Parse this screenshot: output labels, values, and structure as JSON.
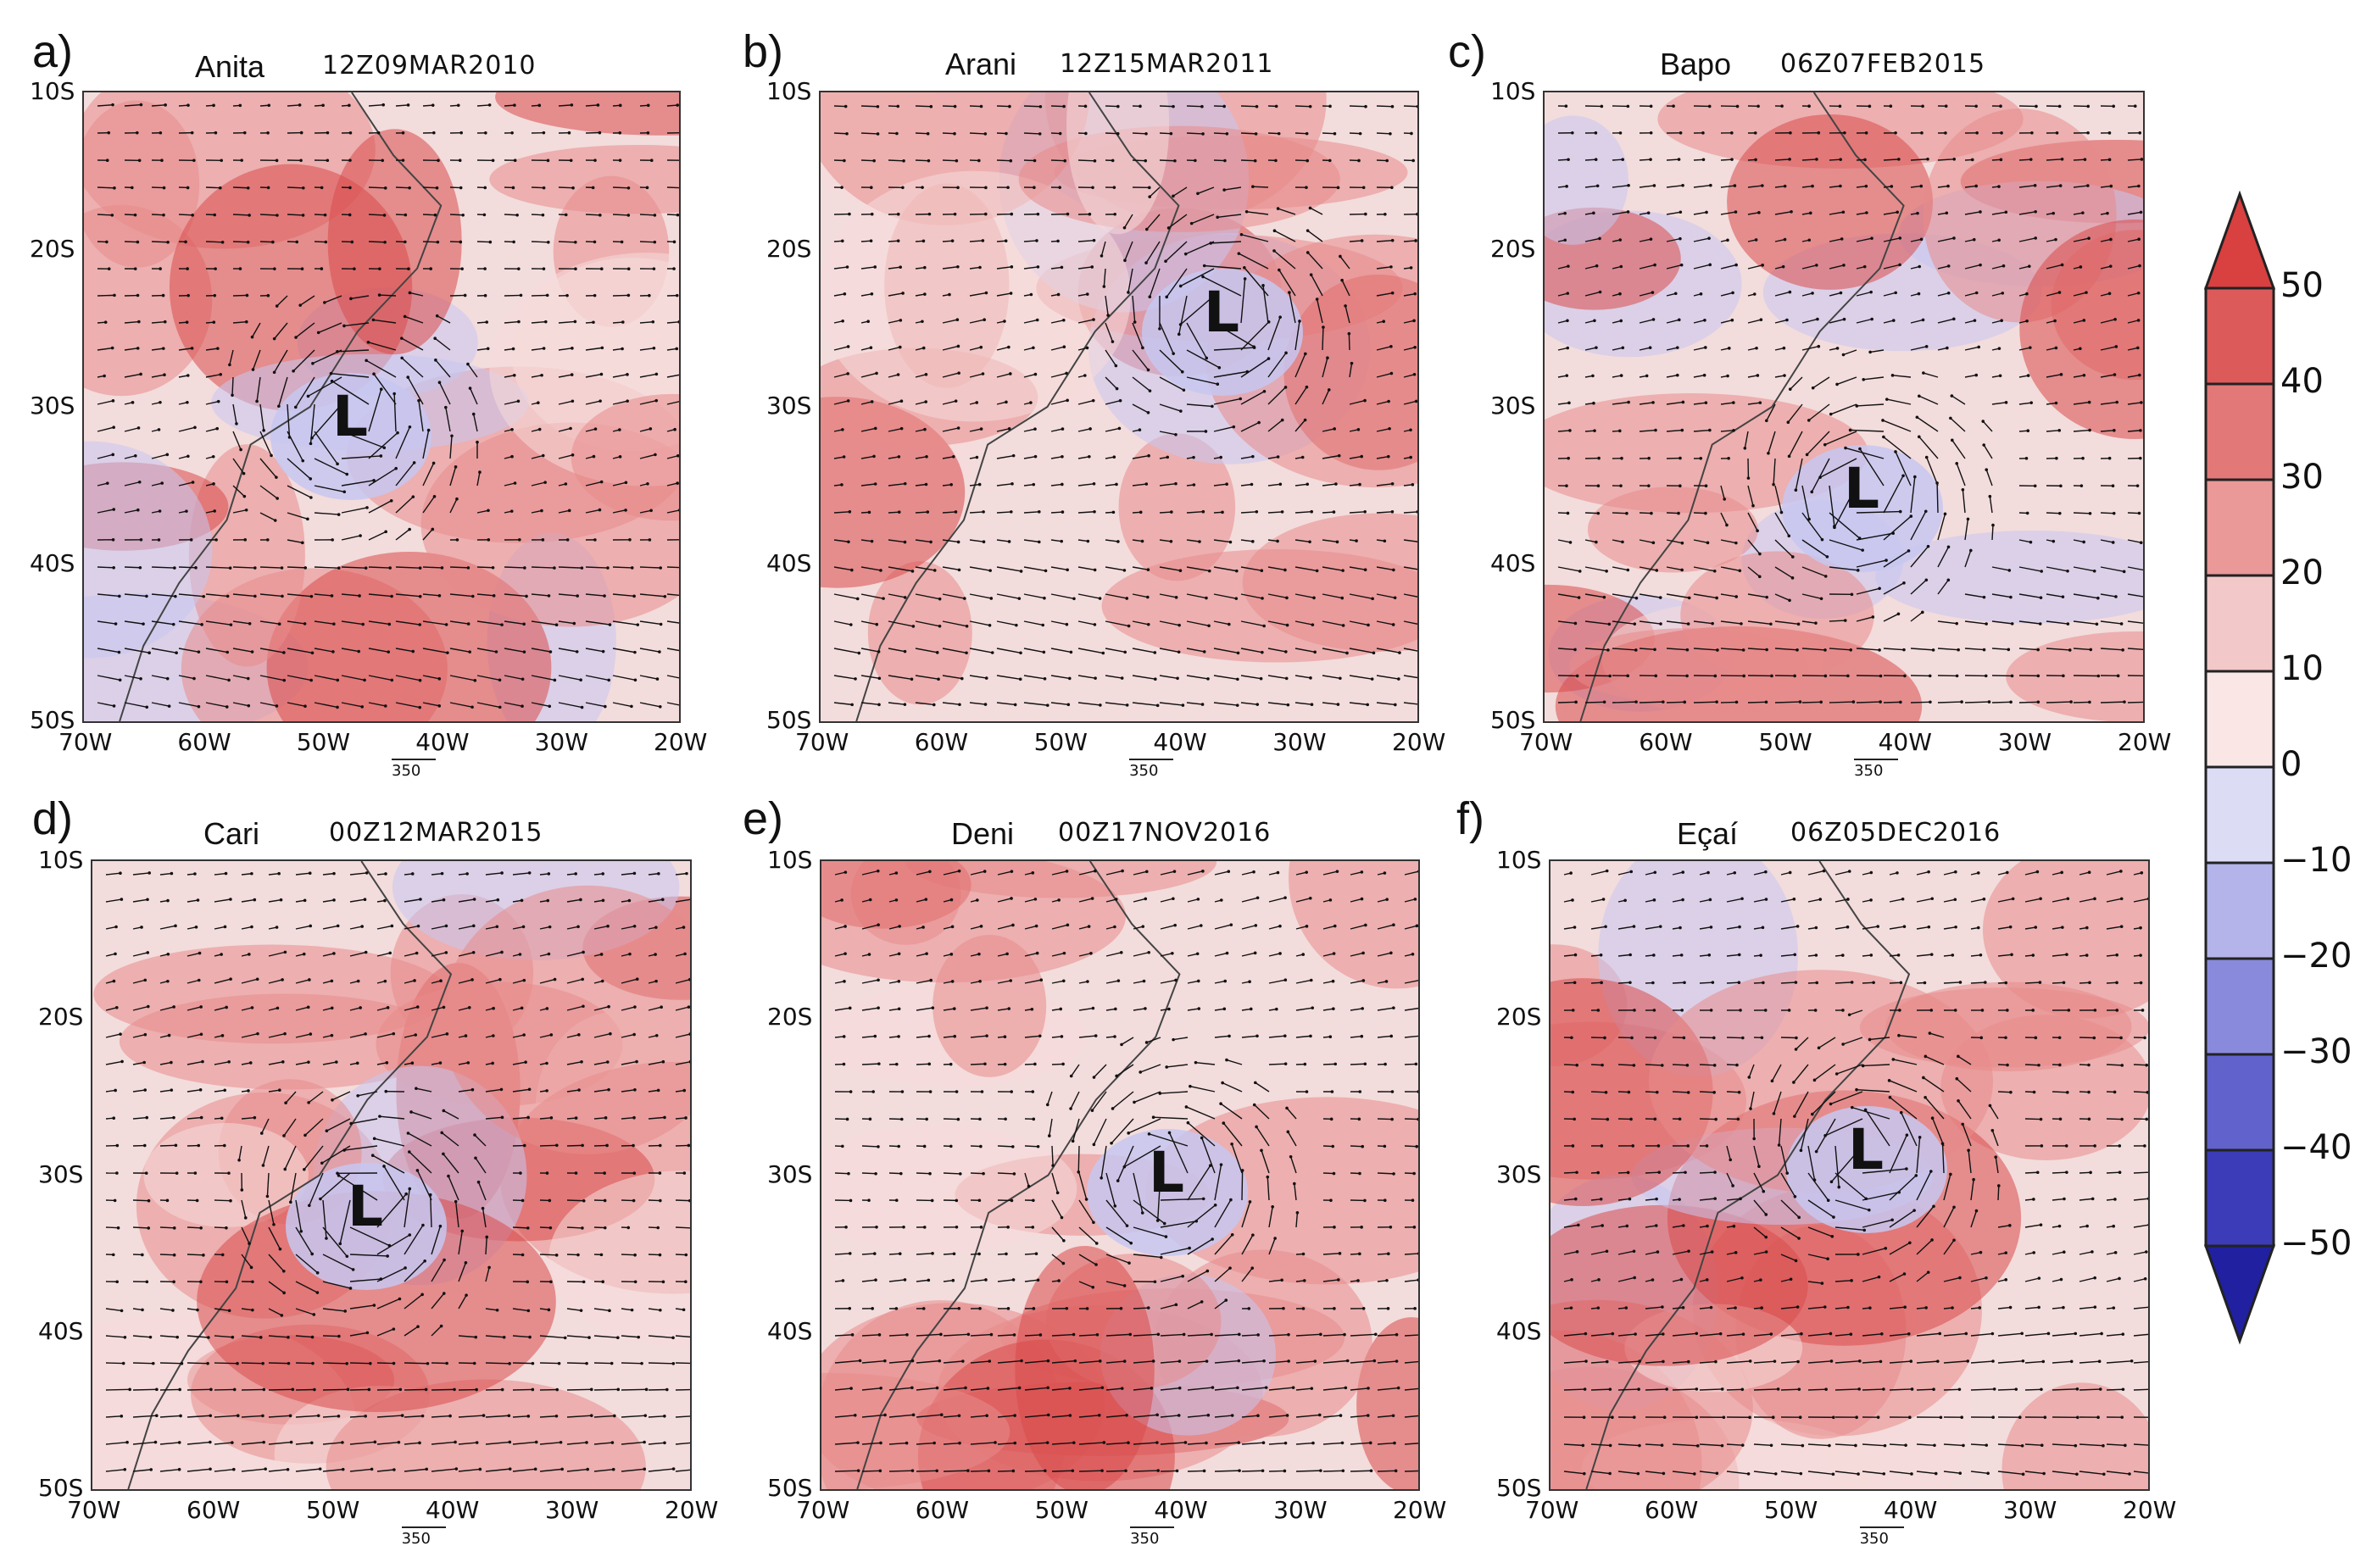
{
  "panels": [
    {
      "letter": "a)",
      "name": "Anita",
      "time": "12Z09MAR2010",
      "low": "L"
    },
    {
      "letter": "b)",
      "name": "Arani",
      "time": "12Z15MAR2011",
      "low": "L"
    },
    {
      "letter": "c)",
      "name": "Bapo",
      "time": "06Z07FEB2015",
      "low": "L"
    },
    {
      "letter": "d)",
      "name": "Cari",
      "time": "00Z12MAR2015",
      "low": "L"
    },
    {
      "letter": "e)",
      "name": "Deni",
      "time": "00Z17NOV2016",
      "low": "L"
    },
    {
      "letter": "f)",
      "name": "Eçaí",
      "time": "06Z05DEC2016",
      "low": "L"
    }
  ],
  "axes": {
    "lat_labels": [
      "10S",
      "20S",
      "30S",
      "40S",
      "50S"
    ],
    "lon_labels": [
      "70W",
      "60W",
      "50W",
      "40W",
      "30W",
      "20W"
    ],
    "reference_vector": "350"
  },
  "colorbar": {
    "labels": [
      "50",
      "40",
      "30",
      "20",
      "10",
      "0",
      "−10",
      "−20",
      "−30",
      "−40",
      "−50"
    ],
    "colors": [
      "#d94040",
      "#dd5a5a",
      "#e27878",
      "#ea9898",
      "#f3c8c8",
      "#fbe6e6",
      "#dcdcf5",
      "#b4b4ea",
      "#8a8adc",
      "#6262cc",
      "#3c3cb8",
      "#2020a0"
    ]
  },
  "map_colors": {
    "positive": "#e88a8a",
    "strong_positive": "#d94a4a",
    "neutral": "#f6dada",
    "negative": "#c7c7f0",
    "coast": "#444444",
    "arrow": "#111111"
  }
}
